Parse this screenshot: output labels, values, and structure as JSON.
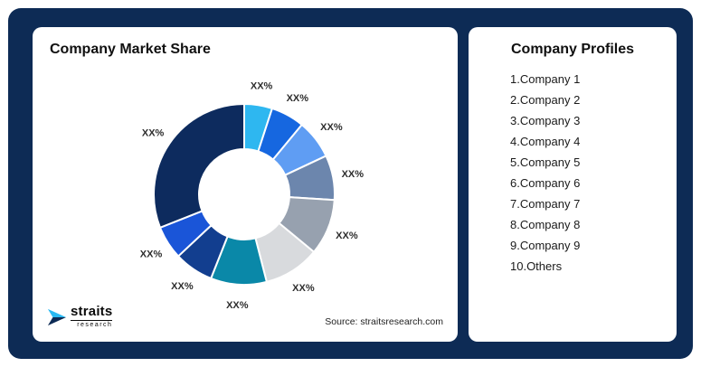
{
  "left_panel": {
    "title": "Company Market Share",
    "source": "Source: straitsresearch.com",
    "logo_title": "straits",
    "logo_subtitle": "research"
  },
  "right_panel": {
    "title": "Company Profiles",
    "items": [
      "1.Company 1",
      "2.Company 2",
      "3.Company 3",
      "4.Company 4",
      "5.Company 5",
      "6.Company 6",
      "7.Company 7",
      "8.Company 8",
      "9.Company 9",
      "10.Others"
    ]
  },
  "chart_data": {
    "type": "pie",
    "title": "Company Market Share",
    "donut": true,
    "inner_radius_ratio": 0.5,
    "legend_position": "none",
    "segments": [
      {
        "label": "XX%",
        "value": 5,
        "color": "#2EB7F0"
      },
      {
        "label": "XX%",
        "value": 6,
        "color": "#1667E0"
      },
      {
        "label": "XX%",
        "value": 7,
        "color": "#5F9DF3"
      },
      {
        "label": "XX%",
        "value": 8,
        "color": "#6C86AD"
      },
      {
        "label": "XX%",
        "value": 10,
        "color": "#97A1AF"
      },
      {
        "label": "XX%",
        "value": 10,
        "color": "#D8DADD"
      },
      {
        "label": "XX%",
        "value": 10,
        "color": "#0A88A8"
      },
      {
        "label": "XX%",
        "value": 7,
        "color": "#123E8F"
      },
      {
        "label": "XX%",
        "value": 6,
        "color": "#1A55D8"
      },
      {
        "label": "XX%",
        "value": 31,
        "color": "#0D2B5E"
      }
    ]
  },
  "colors": {
    "frame_navy": "#0D2B55",
    "panel_white": "#FFFFFF",
    "accent_cyan": "#29B9F2"
  }
}
